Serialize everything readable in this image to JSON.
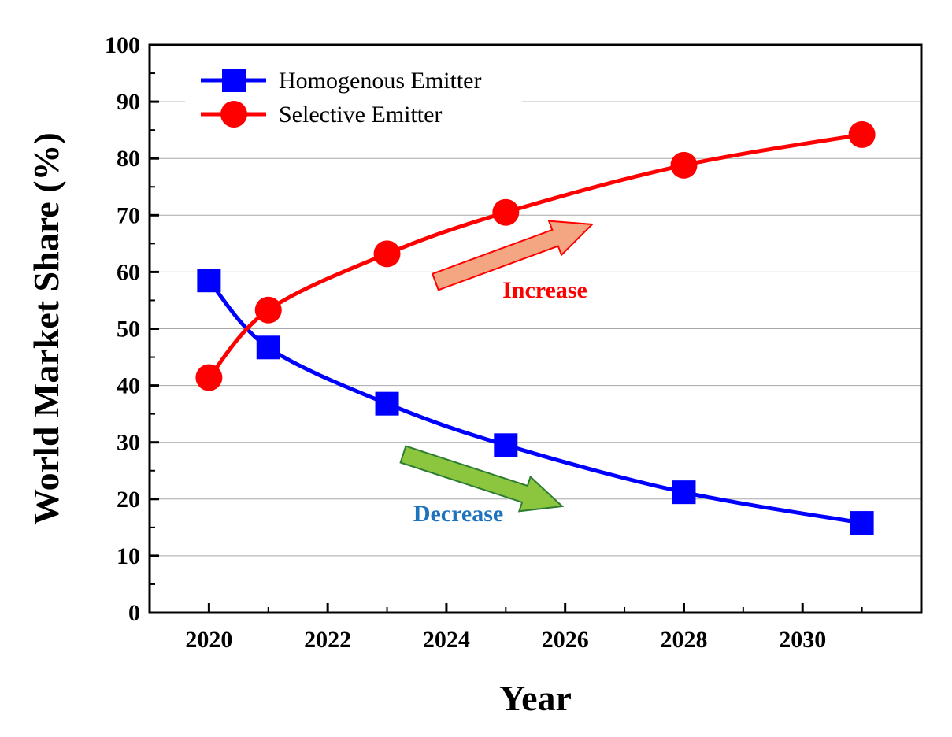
{
  "chart_data": {
    "type": "line",
    "xlabel": "Year",
    "ylabel": "World Market Share (%)",
    "xlim": [
      2019,
      2032
    ],
    "ylim": [
      0,
      100
    ],
    "x_ticks": [
      2020,
      2022,
      2024,
      2026,
      2028,
      2030
    ],
    "y_ticks": [
      0,
      10,
      20,
      30,
      40,
      50,
      60,
      70,
      80,
      90,
      100
    ],
    "grid": "horizontal",
    "legend_position": "top-left",
    "series": [
      {
        "name": "Homogenous Emitter",
        "color": "#0000ff",
        "marker": "square",
        "x": [
          2020,
          2021,
          2023,
          2025,
          2028,
          2031
        ],
        "values": [
          58.5,
          46.7,
          36.8,
          29.5,
          21.2,
          15.8
        ]
      },
      {
        "name": "Selective Emitter",
        "color": "#ff0000",
        "marker": "circle",
        "x": [
          2020,
          2021,
          2023,
          2025,
          2028,
          2031
        ],
        "values": [
          41.4,
          53.3,
          63.2,
          70.5,
          78.8,
          84.2
        ]
      }
    ],
    "annotations": [
      {
        "text": "Increase",
        "color": "#ff0000",
        "arrow_fill": "#f4a582",
        "arrow_stroke": "#ff0000"
      },
      {
        "text": "Decrease",
        "color": "#1e73be",
        "arrow_fill": "#8cc63f",
        "arrow_stroke": "#2e7d32"
      }
    ]
  }
}
